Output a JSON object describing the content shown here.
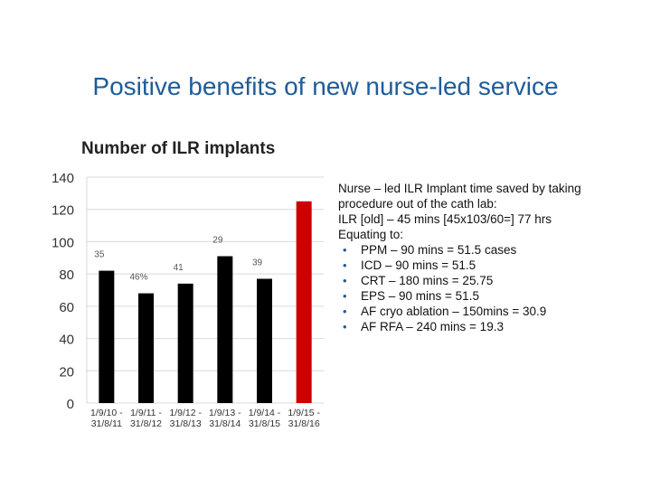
{
  "slide": {
    "title": "Positive benefits of new nurse-led service"
  },
  "chart_data": {
    "type": "bar",
    "title": "Number of ILR implants",
    "categories": [
      [
        "1/9/10 -",
        "31/8/11"
      ],
      [
        "1/9/11 -",
        "31/8/12"
      ],
      [
        "1/9/12 -",
        "31/8/13"
      ],
      [
        "1/9/13 -",
        "31/8/14"
      ],
      [
        "1/9/14 -",
        "31/8/15"
      ],
      [
        "1/9/15 -",
        "31/8/16"
      ]
    ],
    "values": [
      82,
      68,
      74,
      91,
      77,
      125
    ],
    "data_labels": [
      "35",
      "46%",
      "41",
      "29",
      "39",
      ""
    ],
    "colors": [
      "#000000",
      "#000000",
      "#000000",
      "#000000",
      "#000000",
      "#cc0000"
    ],
    "ylim": [
      0,
      140
    ],
    "yticks": [
      0,
      20,
      40,
      60,
      80,
      100,
      120,
      140
    ],
    "grid": true,
    "xlabel": "",
    "ylabel": ""
  },
  "notes": {
    "intro_lines": [
      "Nurse – led ILR Implant time saved by taking procedure out of the cath lab:",
      "ILR [old] – 45 mins [45x103/60=] 77 hrs",
      "Equating to:"
    ],
    "bullets": [
      "PPM – 90 mins = 51.5 cases",
      "ICD – 90 mins = 51.5",
      "CRT – 180 mins = 25.75",
      "EPS – 90 mins = 51.5",
      "AF cryo ablation – 150mins = 30.9",
      "AF RFA – 240 mins = 19.3"
    ],
    "bullet_icon": "bullet-dot"
  }
}
